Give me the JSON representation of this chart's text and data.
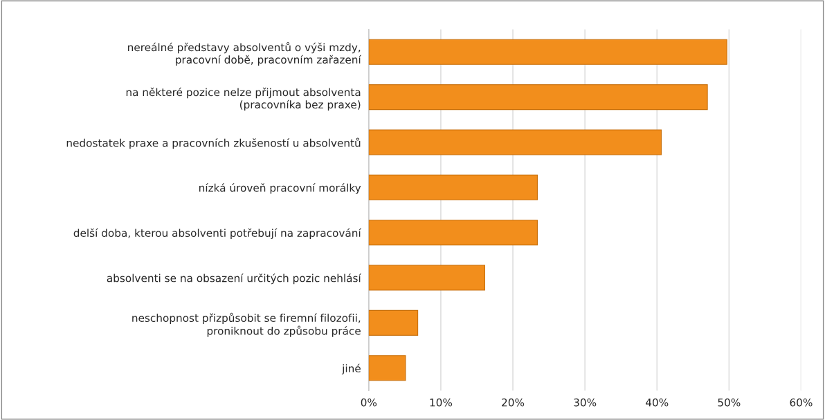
{
  "chart_data": {
    "type": "bar",
    "orientation": "horizontal",
    "categories": [
      "nereálné představy absolventů o výši mzdy,\npracovní době, pracovním zařazení",
      "na některé pozice nelze přijmout absolventa\n(pracovníka bez praxe)",
      "nedostatek praxe a pracovních zkušeností u absolventů",
      "nízká úroveň pracovní morálky",
      "delší doba, kterou absolventi potřebují na zapracování",
      "absolventi se na obsazení určitých pozic nehlásí",
      "neschopnost přizpůsobit se firemní filozofii,\nproniknout do způsobu práce",
      "jiné"
    ],
    "values": [
      49.7,
      47.0,
      40.6,
      23.4,
      23.4,
      16.1,
      6.8,
      5.1
    ],
    "color": "#f28e1c",
    "xlim": [
      0,
      60
    ],
    "xticks": [
      {
        "value": 0,
        "label": "0%"
      },
      {
        "value": 10,
        "label": "10%"
      },
      {
        "value": 20,
        "label": "20%"
      },
      {
        "value": 30,
        "label": "30%"
      },
      {
        "value": 40,
        "label": "40%"
      },
      {
        "value": 50,
        "label": "50%"
      },
      {
        "value": 60,
        "label": "60%"
      }
    ],
    "grid": "x",
    "legend": false
  }
}
